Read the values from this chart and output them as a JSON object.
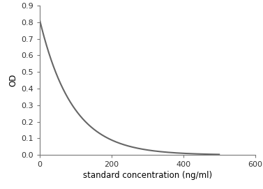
{
  "xlabel": "standard concentration (ng/ml)",
  "ylabel": "OD",
  "xlim": [
    0,
    600
  ],
  "ylim": [
    0,
    0.9
  ],
  "xticks": [
    0,
    200,
    400,
    600
  ],
  "yticks": [
    0,
    0.1,
    0.2,
    0.3,
    0.4,
    0.5,
    0.6,
    0.7,
    0.8,
    0.9
  ],
  "line_color": "#666666",
  "line_width": 1.5,
  "background_color": "#ffffff",
  "A": 0.82,
  "B": 0.0,
  "k": 0.011
}
